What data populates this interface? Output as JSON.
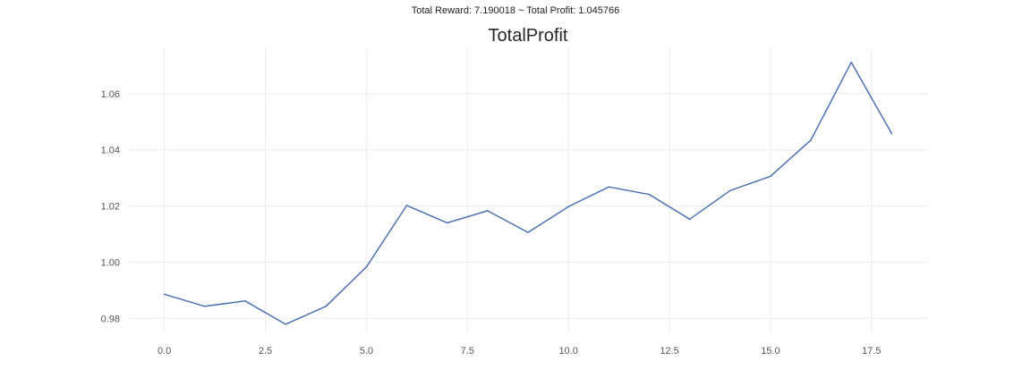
{
  "suptitle": "Total Reward: 7.190018 ~ Total Profit: 1.045766",
  "colors": {
    "line": "#4c72b0",
    "grid": "#ebebeb",
    "text": "#555555"
  },
  "chart_data": {
    "type": "line",
    "title": "TotalProfit",
    "xlabel": "",
    "ylabel": "",
    "xlim": [
      -0.9,
      18.9
    ],
    "ylim": [
      0.975,
      1.0765
    ],
    "grid": true,
    "xticks": [
      0.0,
      2.5,
      5.0,
      7.5,
      10.0,
      12.5,
      15.0,
      17.5
    ],
    "xtick_labels": [
      "0.0",
      "2.5",
      "5.0",
      "7.5",
      "10.0",
      "12.5",
      "15.0",
      "17.5"
    ],
    "yticks": [
      0.98,
      1.0,
      1.02,
      1.04,
      1.06
    ],
    "ytick_labels": [
      "0.98",
      "1.00",
      "1.02",
      "1.04",
      "1.06"
    ],
    "series": [
      {
        "x": [
          0,
          1,
          2,
          3,
          4,
          5,
          6,
          7,
          8,
          9,
          10,
          11,
          12,
          13,
          14,
          15,
          16,
          17,
          18
        ],
        "values": [
          0.9886,
          0.9843,
          0.9862,
          0.9779,
          0.9843,
          0.9983,
          1.0202,
          1.014,
          1.0183,
          1.0106,
          1.0198,
          1.0268,
          1.0241,
          1.0153,
          1.0255,
          1.0306,
          1.0435,
          1.0712,
          1.0458
        ]
      }
    ]
  }
}
